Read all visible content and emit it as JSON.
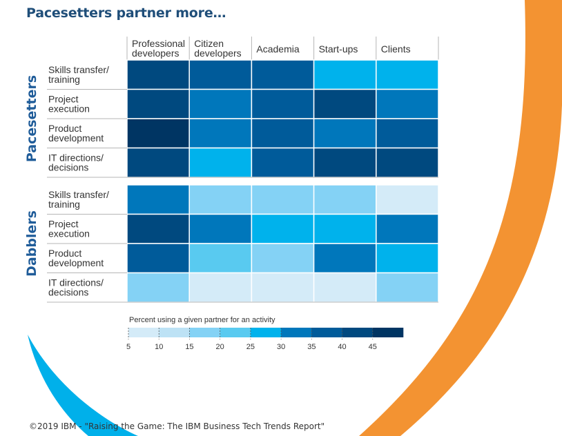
{
  "title": "Pacesetters partner more…",
  "colors": {
    "orange": "#f39332",
    "cyan": "#00b0ea",
    "scale": [
      "#d4ebf8",
      "#bde2f5",
      "#84d2f5",
      "#59caf0",
      "#00b2ec",
      "#0077bb",
      "#005b9a",
      "#00497f",
      "#003563"
    ]
  },
  "chart_data": {
    "type": "heatmap",
    "title": "Pacesetters partner more…",
    "columns": [
      "Professional developers",
      "Citizen developers",
      "Academia",
      "Start-ups",
      "Clients"
    ],
    "column_label_lines": [
      [
        "Professional",
        "developers"
      ],
      [
        "Citizen",
        "developers"
      ],
      [
        "Academia"
      ],
      [
        "Start-ups"
      ],
      [
        "Clients"
      ]
    ],
    "rows": [
      "Skills transfer/ training",
      "Project execution",
      "Product development",
      "IT directions/ decisions"
    ],
    "row_label_lines": [
      [
        "Skills transfer/",
        "training"
      ],
      [
        "Project",
        "execution"
      ],
      [
        "Product",
        "development"
      ],
      [
        "IT directions/",
        "decisions"
      ]
    ],
    "groups": [
      {
        "name": "Pacesetters",
        "values": [
          [
            37,
            33,
            32,
            27,
            23
          ],
          [
            38,
            28,
            33,
            40,
            28
          ],
          [
            42,
            28,
            32,
            28,
            33
          ],
          [
            37,
            23,
            32,
            38,
            38
          ]
        ]
      },
      {
        "name": "Dabblers",
        "values": [
          [
            28,
            18,
            17,
            18,
            8
          ],
          [
            38,
            28,
            23,
            23,
            28
          ],
          [
            33,
            22,
            18,
            28,
            23
          ],
          [
            18,
            7,
            9,
            9,
            18
          ]
        ]
      }
    ],
    "legend": {
      "title": "Percent using a given partner for an activity",
      "ticks": [
        5,
        10,
        15,
        20,
        25,
        30,
        35,
        40,
        45
      ],
      "range": [
        5,
        45
      ]
    }
  },
  "footer": "©2019 IBM - \"Raising the Game: The IBM Business Tech Trends Report\""
}
